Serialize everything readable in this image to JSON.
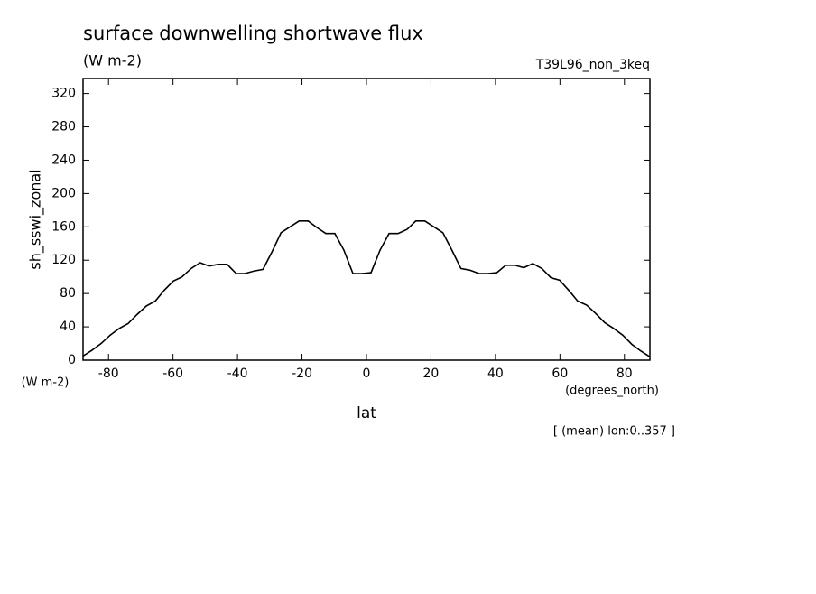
{
  "chart_data": {
    "type": "line",
    "title": "surface downwelling shortwave flux",
    "units": "(W m-2)",
    "experiment": "T39L96_non_3keq",
    "y_label": "sh_sswi_zonal",
    "y_units": "(W m-2)",
    "x_label": "lat",
    "x_units": "(degrees_north)",
    "note": "[ (mean) lon:0..357 ]",
    "x": [
      -87.9,
      -85.1,
      -82.3,
      -79.5,
      -76.7,
      -73.9,
      -71.1,
      -68.3,
      -65.5,
      -62.7,
      -59.9,
      -57.2,
      -54.4,
      -51.6,
      -48.8,
      -46.0,
      -43.2,
      -40.4,
      -37.7,
      -34.9,
      -32.1,
      -29.3,
      -26.5,
      -23.7,
      -20.9,
      -18.1,
      -15.3,
      -12.6,
      -9.8,
      -7.0,
      -4.2,
      -1.4,
      1.4,
      4.2,
      7.0,
      9.8,
      12.6,
      15.3,
      18.1,
      20.9,
      23.7,
      26.5,
      29.3,
      32.1,
      34.9,
      37.7,
      40.4,
      43.2,
      46.0,
      48.8,
      51.6,
      54.4,
      57.2,
      59.9,
      62.7,
      65.5,
      68.3,
      71.1,
      73.9,
      76.7,
      79.5,
      82.3,
      85.1,
      87.9
    ],
    "series": [
      {
        "name": "sh_sswi_zonal",
        "color": "#000000",
        "values": [
          5,
          12,
          20,
          30,
          38,
          44,
          55,
          65,
          71,
          84,
          95,
          100,
          110,
          117,
          113,
          115,
          115,
          104,
          104,
          107,
          109,
          130,
          153,
          160,
          167,
          167,
          159,
          152,
          152,
          132,
          104,
          104,
          105,
          132,
          152,
          152,
          157,
          167,
          167,
          160,
          153,
          132,
          110,
          108,
          104,
          104,
          105,
          114,
          114,
          111,
          116,
          110,
          99,
          96,
          84,
          71,
          66,
          56,
          45,
          38,
          30,
          19,
          11,
          4
        ]
      }
    ],
    "xlim": [
      -87.9,
      87.9
    ],
    "ylim": [
      0,
      338
    ],
    "xticks": [
      -80,
      -60,
      -40,
      -20,
      0,
      20,
      40,
      60,
      80
    ],
    "yticks": [
      0,
      40,
      80,
      120,
      160,
      200,
      240,
      280,
      320
    ]
  }
}
